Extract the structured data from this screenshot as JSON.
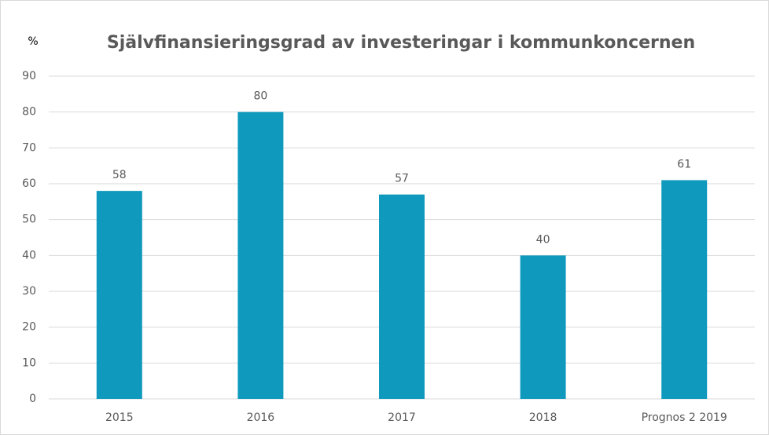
{
  "chart_data": {
    "type": "bar",
    "title": "Självfinansieringsgrad av investeringar i kommunkoncernen",
    "y_label": "%",
    "categories": [
      "2015",
      "2016",
      "2017",
      "2018",
      "Prognos 2 2019"
    ],
    "values": [
      58,
      80,
      57,
      40,
      61
    ],
    "color": "#0f9abd",
    "ylim": [
      0,
      90
    ],
    "yticks": [
      0,
      10,
      20,
      30,
      40,
      50,
      60,
      70,
      80,
      90
    ],
    "grid": true
  }
}
